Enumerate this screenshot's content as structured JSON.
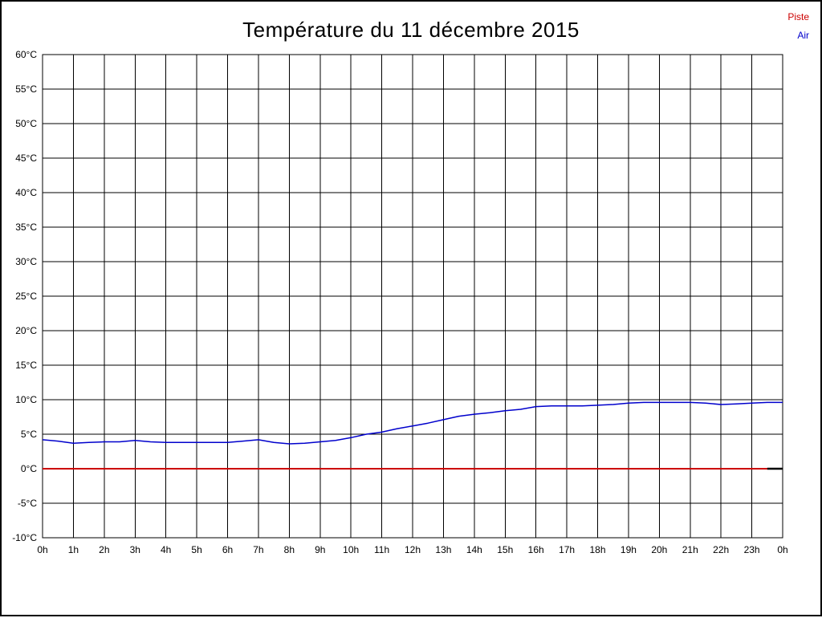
{
  "page": {
    "background": "#ffffff",
    "border_color": "#000000",
    "grid_color": "#000000",
    "text_color": "#000000"
  },
  "legend": {
    "piste": "Piste",
    "air": "Air",
    "piste_color": "#cc0000",
    "air_color": "#0000cc"
  },
  "chart_data": {
    "type": "line",
    "title": "Température du 11 décembre 2015",
    "xlabel": "",
    "ylabel": "",
    "xlim": [
      0,
      24
    ],
    "ylim": [
      -10,
      60
    ],
    "grid": true,
    "legend_position": "top-right",
    "x_ticks": [
      "0h",
      "1h",
      "2h",
      "3h",
      "4h",
      "5h",
      "6h",
      "7h",
      "8h",
      "9h",
      "10h",
      "11h",
      "12h",
      "13h",
      "14h",
      "15h",
      "16h",
      "17h",
      "18h",
      "19h",
      "20h",
      "21h",
      "22h",
      "23h",
      "0h"
    ],
    "y_ticks": [
      "60°C",
      "55°C",
      "50°C",
      "45°C",
      "40°C",
      "35°C",
      "30°C",
      "25°C",
      "20°C",
      "15°C",
      "10°C",
      "5°C",
      "0°C",
      "-5°C",
      "-10°C"
    ],
    "series": [
      {
        "name": "Piste",
        "color": "#cc0000",
        "width": 2,
        "x": [
          0,
          24
        ],
        "values": [
          0,
          0
        ]
      },
      {
        "name": "Air",
        "color": "#0000cc",
        "width": 1.5,
        "x": [
          0,
          0.5,
          1,
          1.5,
          2,
          2.5,
          3,
          3.5,
          4,
          4.5,
          5,
          5.5,
          6,
          6.5,
          7,
          7.5,
          8,
          8.5,
          9,
          9.5,
          10,
          10.5,
          11,
          11.5,
          12,
          12.5,
          13,
          13.5,
          14,
          14.5,
          15,
          15.5,
          16,
          16.5,
          17,
          17.5,
          18,
          18.5,
          19,
          19.5,
          20,
          20.5,
          21,
          21.5,
          22,
          22.5,
          23,
          23.5,
          24
        ],
        "values": [
          4.2,
          4.0,
          3.7,
          3.8,
          3.9,
          3.9,
          4.1,
          3.9,
          3.8,
          3.8,
          3.8,
          3.8,
          3.8,
          4.0,
          4.2,
          3.8,
          3.6,
          3.7,
          3.9,
          4.1,
          4.5,
          5.0,
          5.3,
          5.8,
          6.2,
          6.6,
          7.1,
          7.6,
          7.9,
          8.1,
          8.4,
          8.6,
          9.0,
          9.1,
          9.1,
          9.1,
          9.2,
          9.3,
          9.5,
          9.6,
          9.6,
          9.6,
          9.6,
          9.5,
          9.3,
          9.4,
          9.5,
          9.6,
          9.6
        ]
      },
      {
        "name": "End-Marker",
        "color": "#000000",
        "width": 2.5,
        "x": [
          23.5,
          24
        ],
        "values": [
          0,
          0
        ]
      }
    ]
  }
}
